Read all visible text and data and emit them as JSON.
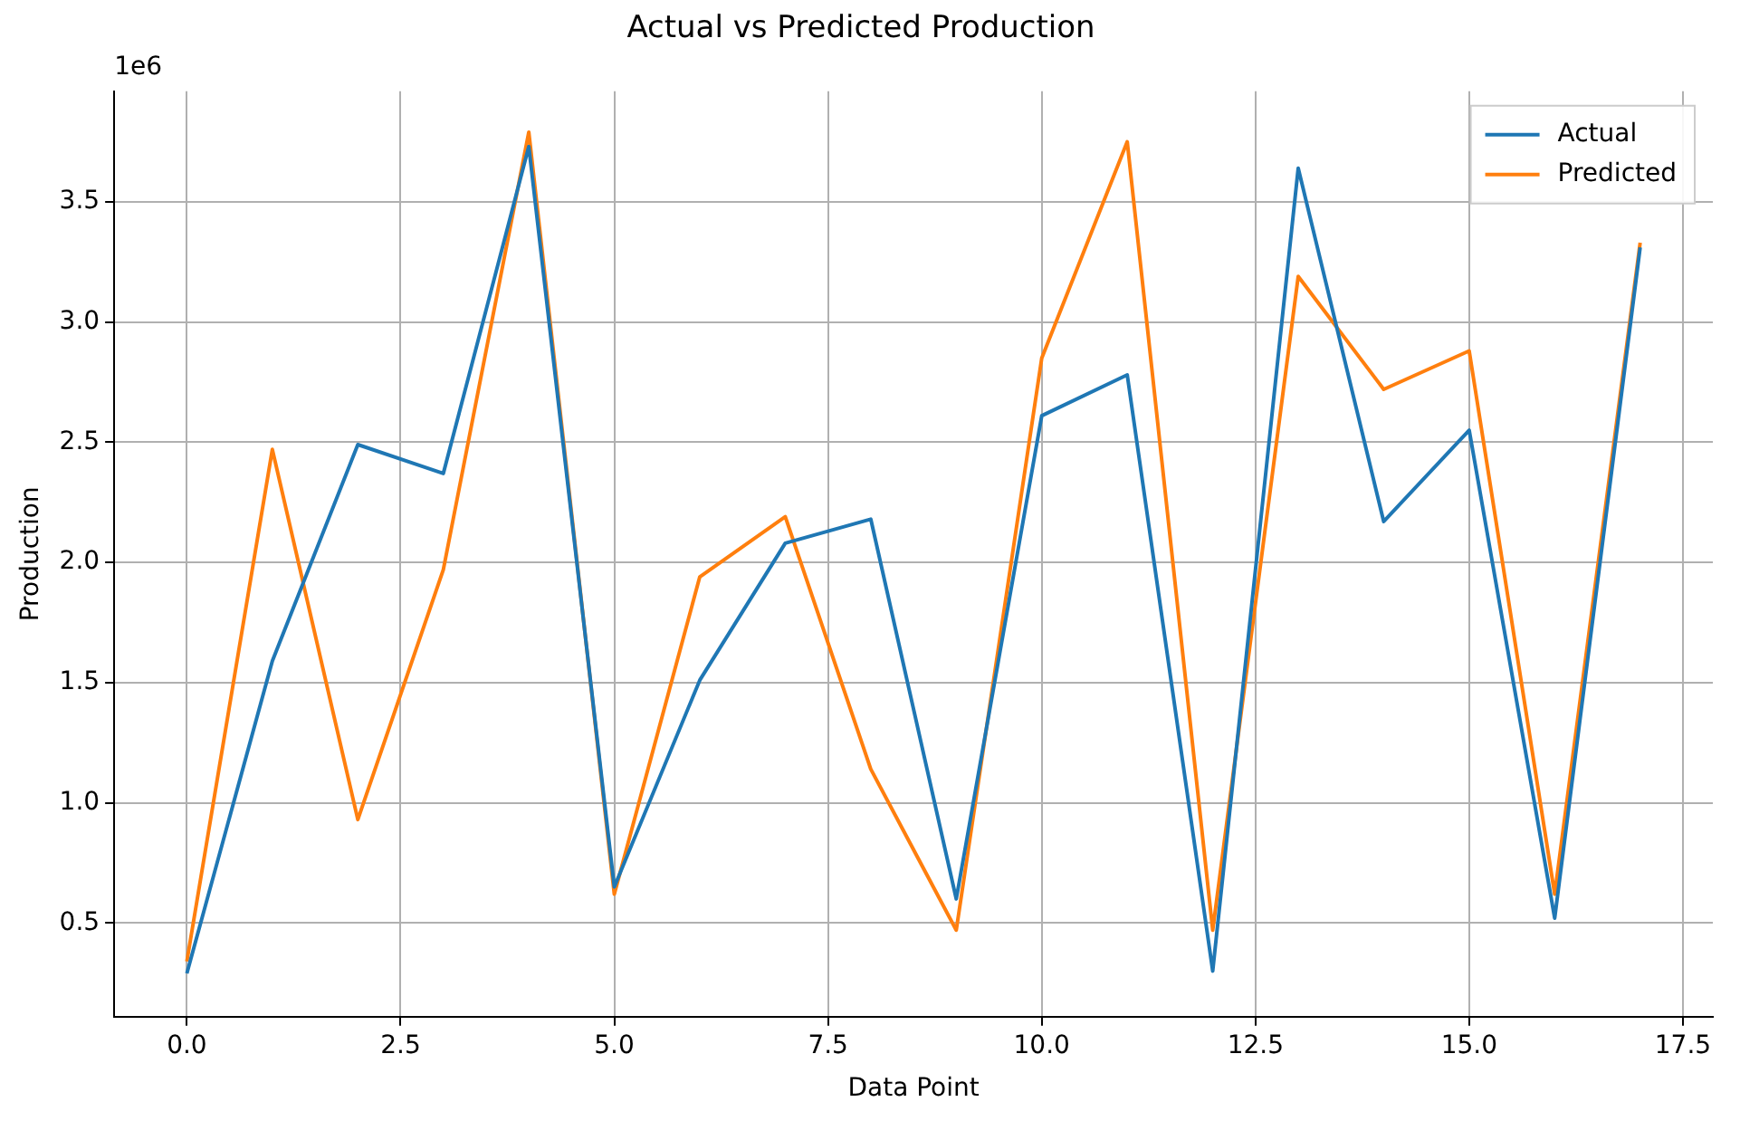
{
  "chart_data": {
    "type": "line",
    "title": "Actual vs Predicted Production",
    "xlabel": "Data Point",
    "ylabel": "Production",
    "annotations": [
      "1e6"
    ],
    "x": [
      0,
      1,
      2,
      3,
      4,
      5,
      6,
      7,
      8,
      9,
      10,
      11,
      12,
      13,
      14,
      15,
      16,
      17
    ],
    "series": [
      {
        "name": "Actual",
        "color": "#1f77b4",
        "values": [
          0.29,
          1.59,
          2.49,
          2.37,
          3.73,
          0.65,
          1.51,
          2.08,
          2.18,
          0.6,
          2.61,
          2.78,
          0.3,
          3.64,
          2.17,
          2.55,
          0.52,
          3.31
        ]
      },
      {
        "name": "Predicted",
        "color": "#ff7f0e",
        "values": [
          0.34,
          2.47,
          0.93,
          1.97,
          3.79,
          0.62,
          1.94,
          2.19,
          1.14,
          0.47,
          2.85,
          3.75,
          0.47,
          3.19,
          2.72,
          2.88,
          0.62,
          3.33
        ]
      }
    ],
    "xlim": [
      -0.85,
      17.85
    ],
    "xticks": [
      {
        "value": 0,
        "label": "0.0"
      },
      {
        "value": 2.5,
        "label": "2.5"
      },
      {
        "value": 5,
        "label": "5.0"
      },
      {
        "value": 7.5,
        "label": "7.5"
      },
      {
        "value": 10,
        "label": "10.0"
      },
      {
        "value": 12.5,
        "label": "12.5"
      },
      {
        "value": 15,
        "label": "15.0"
      },
      {
        "value": 17.5,
        "label": "17.5"
      }
    ],
    "ylim": [
      0.11,
      3.96
    ],
    "yticks": [
      0.5,
      {
        "value": 1,
        "label": "1.0"
      },
      1.5,
      {
        "value": 2,
        "label": "2.0"
      },
      2.5,
      {
        "value": 3,
        "label": "3.0"
      },
      3.5
    ],
    "grid": true,
    "legend": "top right",
    "marker": "none",
    "line_style": "solid"
  }
}
